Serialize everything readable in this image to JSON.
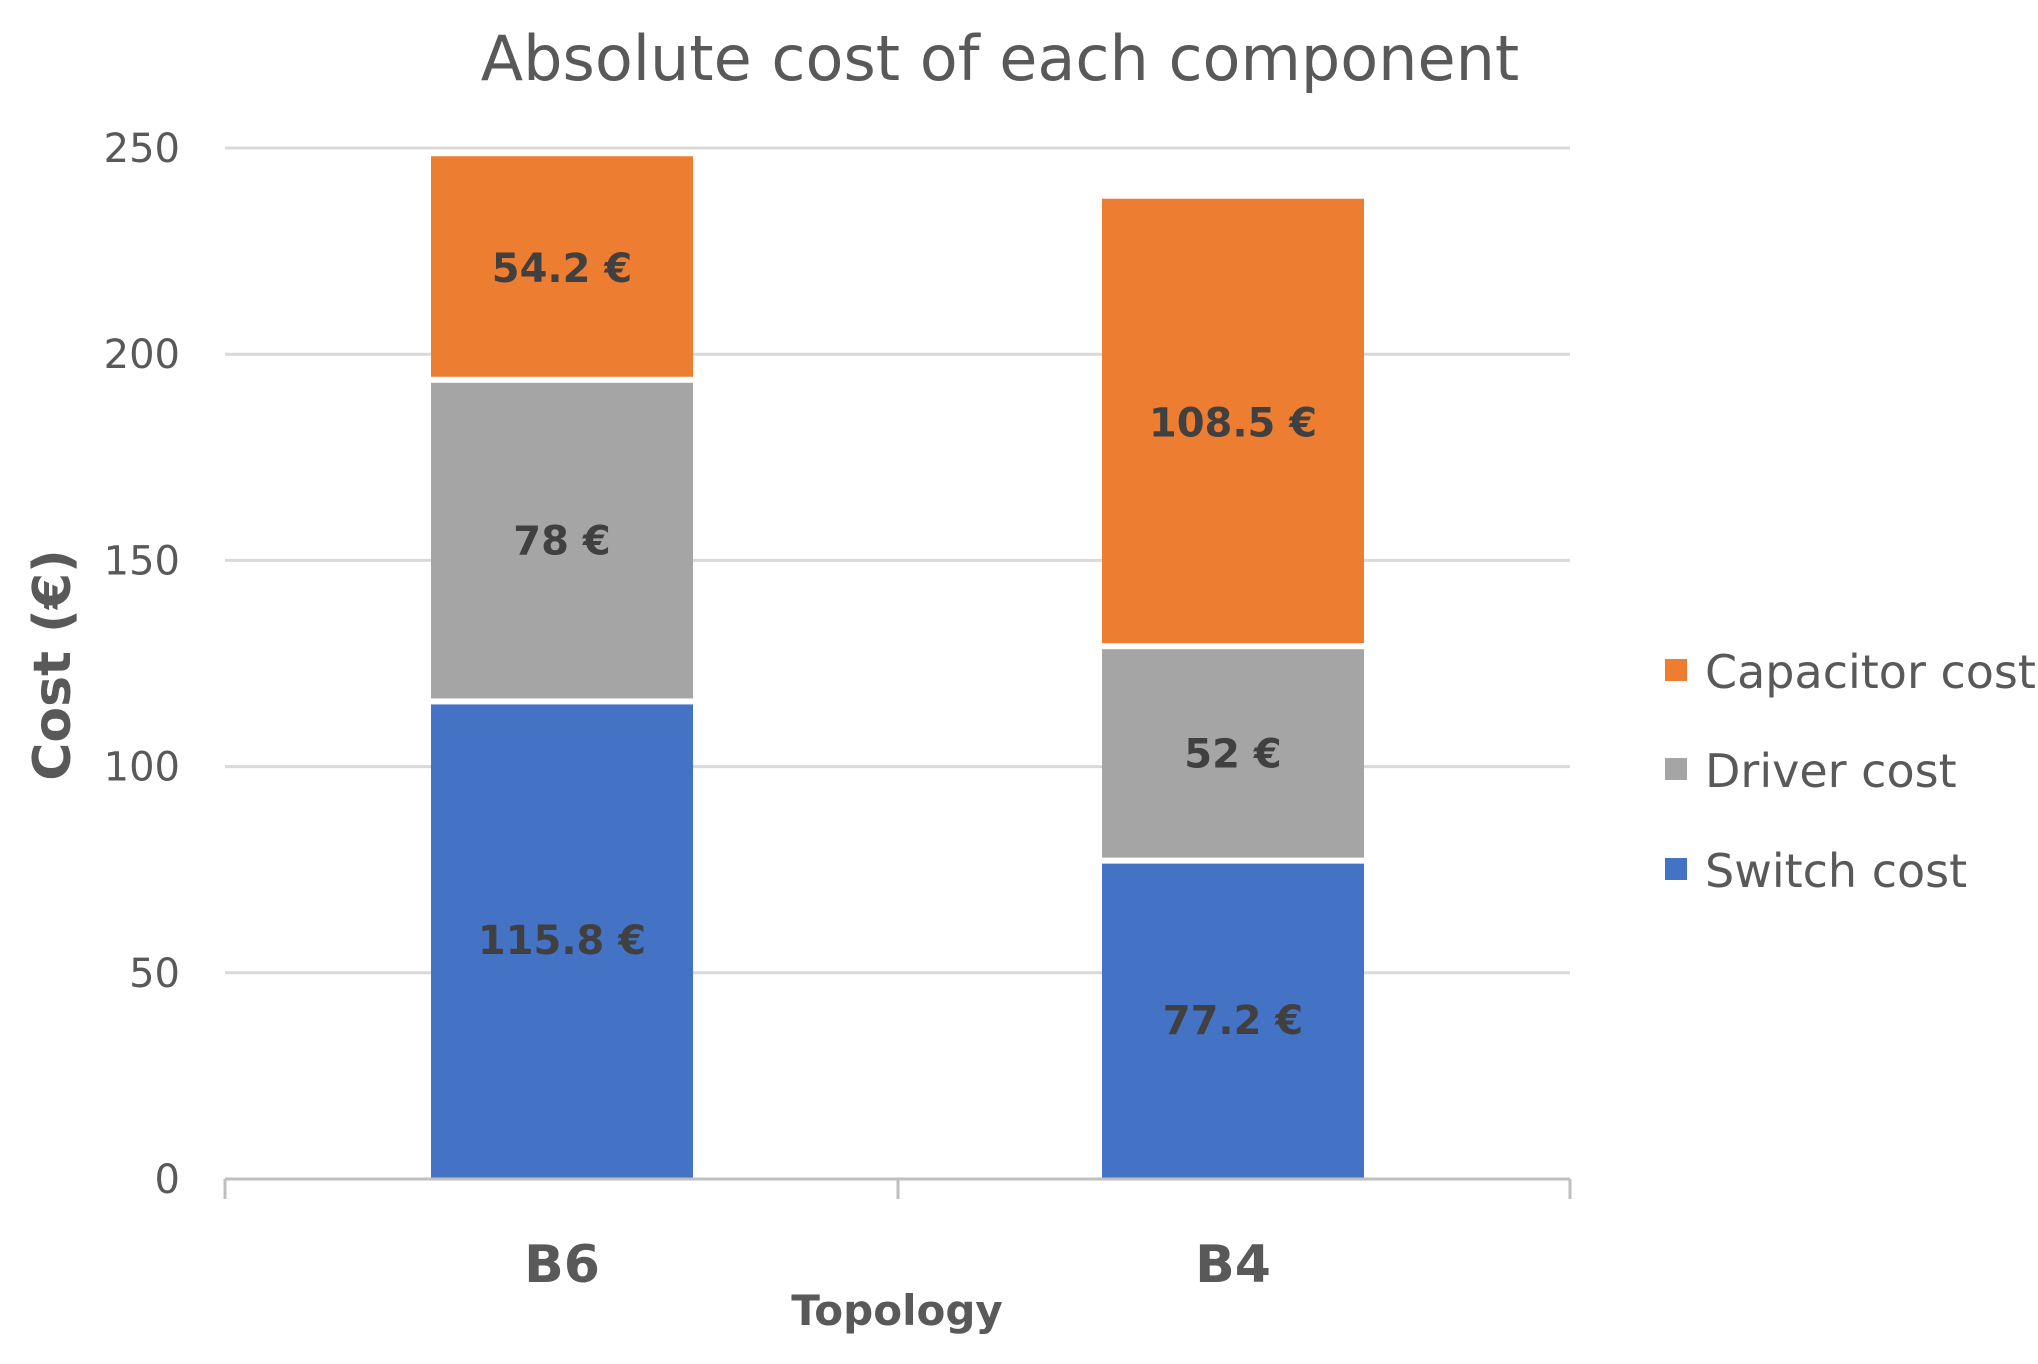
{
  "chart_data": {
    "type": "bar",
    "stacked": true,
    "title": "Absolute cost of each component",
    "xlabel": "Topology",
    "ylabel": "Cost (€)",
    "categories": [
      "B6",
      "B4"
    ],
    "ylim": [
      0,
      250
    ],
    "yticks": [
      0,
      50,
      100,
      150,
      200,
      250
    ],
    "grid": true,
    "legend_position": "right",
    "unit_suffix": " €",
    "series": [
      {
        "name": "Switch cost",
        "color": "#4472C4",
        "values": [
          115.8,
          77.2
        ],
        "labels": [
          "115.8 €",
          "77.2 €"
        ]
      },
      {
        "name": "Driver cost",
        "color": "#A5A5A5",
        "values": [
          78,
          52
        ],
        "labels": [
          "78 €",
          "52 €"
        ]
      },
      {
        "name": "Capacitor cost",
        "color": "#ED7D31",
        "values": [
          54.2,
          108.5
        ],
        "labels": [
          "54.2 €",
          "108.5 €"
        ]
      }
    ],
    "legend_order": [
      "Capacitor cost",
      "Driver cost",
      "Switch cost"
    ]
  }
}
